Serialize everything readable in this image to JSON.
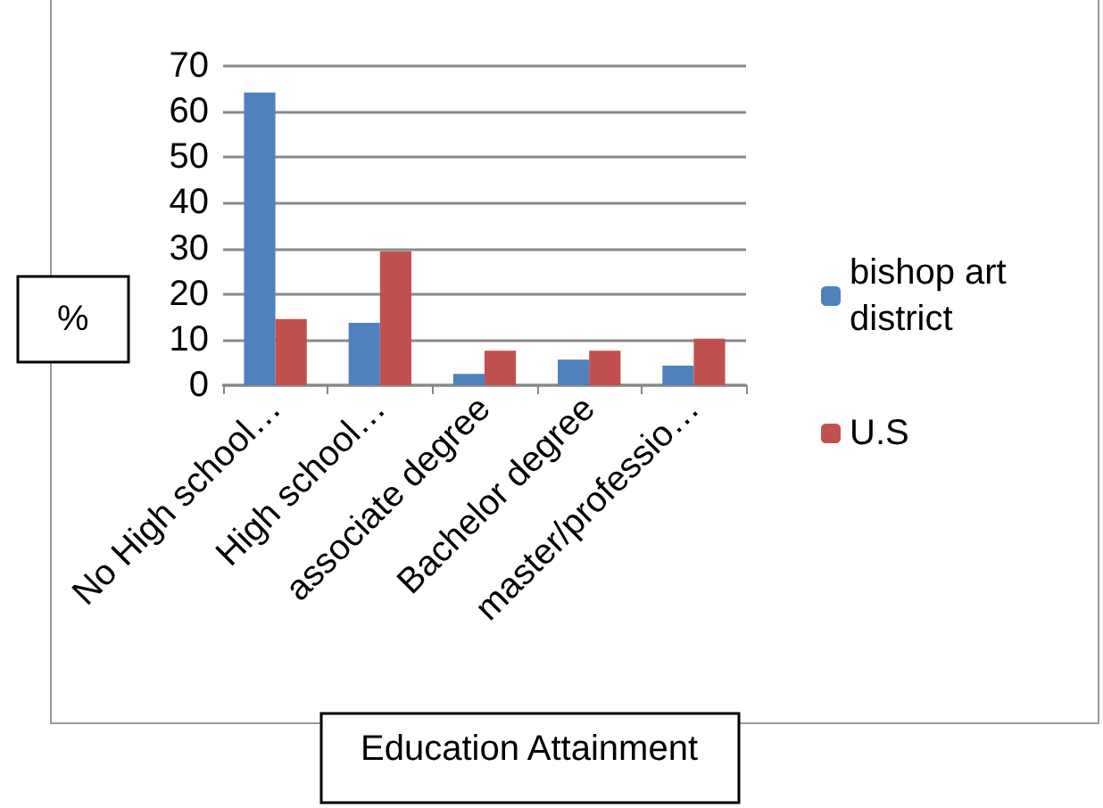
{
  "chart_data": {
    "type": "bar",
    "xlabel": "Education Attainment",
    "ylabel": "%",
    "categories": [
      "No High school…",
      "High school…",
      "associate degree",
      "Bachelor degree",
      "master/professio…"
    ],
    "series": [
      {
        "name": "bishop art district",
        "color": "#4f81bd",
        "values": [
          64.2,
          13.7,
          2.5,
          5.6,
          4.3
        ]
      },
      {
        "name": "U.S",
        "color": "#c0504d",
        "values": [
          14.5,
          29.4,
          7.6,
          7.6,
          10.2
        ]
      }
    ],
    "ylim": [
      0,
      70
    ],
    "yticks": [
      0,
      10,
      20,
      30,
      40,
      50,
      60,
      70
    ],
    "grid": "y",
    "legend": "right"
  }
}
